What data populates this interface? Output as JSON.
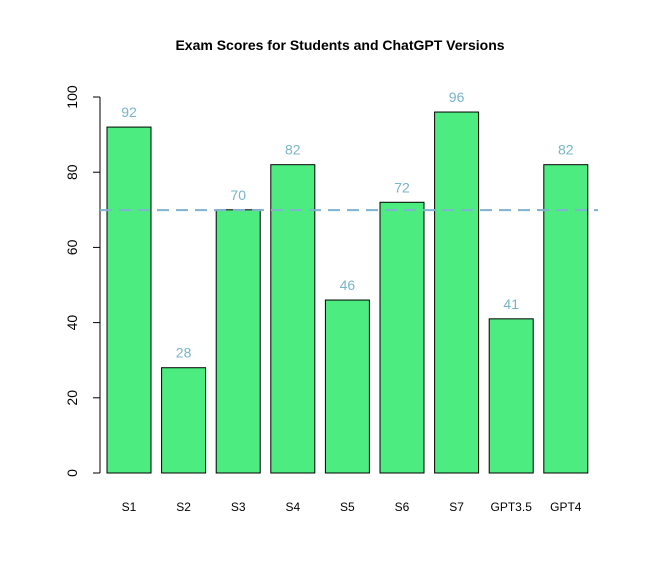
{
  "chart_data": {
    "type": "bar",
    "title": "Exam Scores for Students and ChatGPT Versions",
    "xlabel": "",
    "ylabel": "",
    "categories": [
      "S1",
      "S2",
      "S3",
      "S4",
      "S5",
      "S6",
      "S7",
      "GPT3.5",
      "GPT4"
    ],
    "values": [
      92,
      28,
      70,
      82,
      46,
      72,
      96,
      41,
      82
    ],
    "value_labels": [
      "92",
      "28",
      "70",
      "82",
      "46",
      "72",
      "96",
      "41",
      "82"
    ],
    "ylim": [
      0,
      100
    ],
    "yticks": [
      0,
      20,
      40,
      60,
      80,
      100
    ],
    "ytick_labels": [
      "0",
      "20",
      "40",
      "60",
      "80",
      "100"
    ],
    "reference_line": {
      "style": "dashed",
      "value": 69.9
    },
    "grid": false,
    "legend": "none",
    "colors": {
      "bar_fill": "#4cec80",
      "bar_stroke": "#000000",
      "value_label": "#79b5c9",
      "reference_line": "#7fb3cf",
      "axis": "#000000"
    }
  }
}
